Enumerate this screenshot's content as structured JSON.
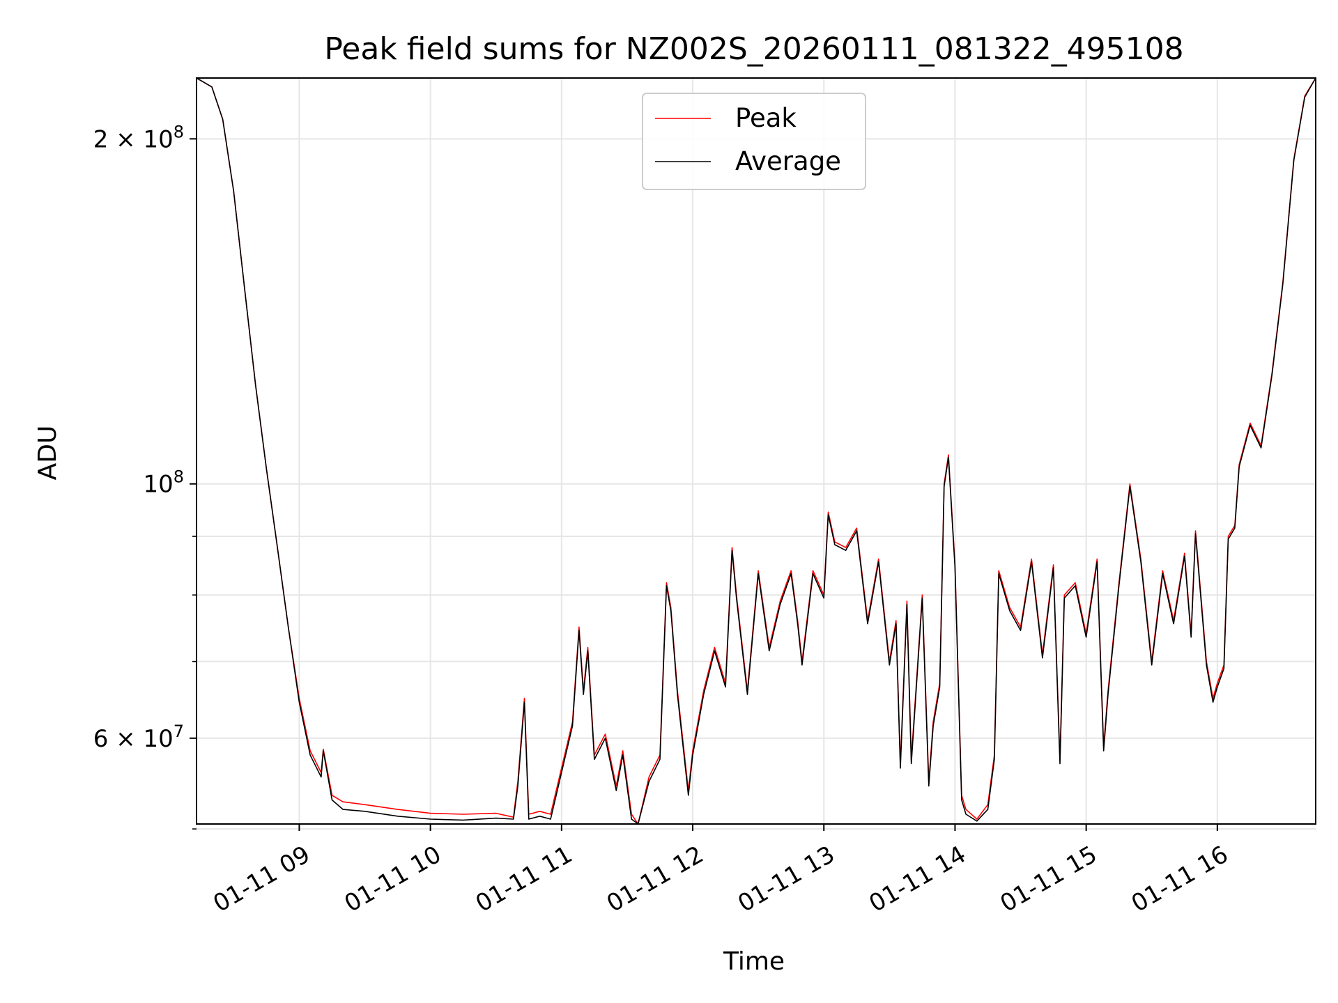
{
  "chart_data": {
    "type": "line",
    "title": "Peak field sums for NZ002S_20260111_081322_495108",
    "xlabel": "Time",
    "ylabel": "ADU",
    "yscale": "log",
    "grid": true,
    "legend_position": "upper center",
    "xlim": [
      "2026-01-11 08:13",
      "2026-01-11 16:45"
    ],
    "ylim": [
      50500000,
      226000000
    ],
    "x_ticks": [
      "01-11 09",
      "01-11 10",
      "01-11 11",
      "01-11 12",
      "01-11 13",
      "01-11 14",
      "01-11 15",
      "01-11 16"
    ],
    "y_ticks": [
      {
        "value": 200000000,
        "base": "2 × 10",
        "exp": "8"
      },
      {
        "value": 100000000,
        "base": "10",
        "exp": "8"
      },
      {
        "value": 60000000,
        "base": "6 × 10",
        "exp": "7"
      }
    ],
    "y_minor_ticks": [
      90000000,
      80000000,
      70000000,
      50000000
    ],
    "series": [
      {
        "name": "Peak",
        "color": "#ff0000",
        "x": [
          "2026-01-11 08:13",
          "2026-01-11 08:20",
          "2026-01-11 08:25",
          "2026-01-11 08:30",
          "2026-01-11 08:35",
          "2026-01-11 08:40",
          "2026-01-11 08:45",
          "2026-01-11 08:50",
          "2026-01-11 08:55",
          "2026-01-11 09:00",
          "2026-01-11 09:05",
          "2026-01-11 09:08",
          "2026-01-11 09:10",
          "2026-01-11 09:11",
          "2026-01-11 09:15",
          "2026-01-11 09:20",
          "2026-01-11 09:30",
          "2026-01-11 09:45",
          "2026-01-11 10:00",
          "2026-01-11 10:15",
          "2026-01-11 10:30",
          "2026-01-11 10:38",
          "2026-01-11 10:40",
          "2026-01-11 10:43",
          "2026-01-11 10:45",
          "2026-01-11 10:50",
          "2026-01-11 10:55",
          "2026-01-11 11:00",
          "2026-01-11 11:05",
          "2026-01-11 11:08",
          "2026-01-11 11:10",
          "2026-01-11 11:12",
          "2026-01-11 11:15",
          "2026-01-11 11:20",
          "2026-01-11 11:25",
          "2026-01-11 11:28",
          "2026-01-11 11:32",
          "2026-01-11 11:35",
          "2026-01-11 11:40",
          "2026-01-11 11:45",
          "2026-01-11 11:48",
          "2026-01-11 11:50",
          "2026-01-11 11:53",
          "2026-01-11 11:58",
          "2026-01-11 12:00",
          "2026-01-11 12:05",
          "2026-01-11 12:10",
          "2026-01-11 12:15",
          "2026-01-11 12:18",
          "2026-01-11 12:20",
          "2026-01-11 12:25",
          "2026-01-11 12:30",
          "2026-01-11 12:35",
          "2026-01-11 12:40",
          "2026-01-11 12:45",
          "2026-01-11 12:48",
          "2026-01-11 12:50",
          "2026-01-11 12:55",
          "2026-01-11 13:00",
          "2026-01-11 13:02",
          "2026-01-11 13:05",
          "2026-01-11 13:10",
          "2026-01-11 13:15",
          "2026-01-11 13:20",
          "2026-01-11 13:25",
          "2026-01-11 13:30",
          "2026-01-11 13:33",
          "2026-01-11 13:35",
          "2026-01-11 13:38",
          "2026-01-11 13:40",
          "2026-01-11 13:45",
          "2026-01-11 13:48",
          "2026-01-11 13:50",
          "2026-01-11 13:53",
          "2026-01-11 13:55",
          "2026-01-11 13:57",
          "2026-01-11 14:00",
          "2026-01-11 14:03",
          "2026-01-11 14:05",
          "2026-01-11 14:10",
          "2026-01-11 14:15",
          "2026-01-11 14:18",
          "2026-01-11 14:20",
          "2026-01-11 14:25",
          "2026-01-11 14:30",
          "2026-01-11 14:35",
          "2026-01-11 14:40",
          "2026-01-11 14:45",
          "2026-01-11 14:48",
          "2026-01-11 14:50",
          "2026-01-11 14:55",
          "2026-01-11 15:00",
          "2026-01-11 15:05",
          "2026-01-11 15:08",
          "2026-01-11 15:10",
          "2026-01-11 15:15",
          "2026-01-11 15:20",
          "2026-01-11 15:25",
          "2026-01-11 15:30",
          "2026-01-11 15:35",
          "2026-01-11 15:40",
          "2026-01-11 15:45",
          "2026-01-11 15:48",
          "2026-01-11 15:50",
          "2026-01-11 15:55",
          "2026-01-11 15:58",
          "2026-01-11 16:00",
          "2026-01-11 16:03",
          "2026-01-11 16:05",
          "2026-01-11 16:08",
          "2026-01-11 16:10",
          "2026-01-11 16:15",
          "2026-01-11 16:20",
          "2026-01-11 16:25",
          "2026-01-11 16:30",
          "2026-01-11 16:35",
          "2026-01-11 16:40",
          "2026-01-11 16:45"
        ],
        "y": [
          226000000,
          222000000,
          208000000,
          180000000,
          148000000,
          122000000,
          103000000,
          88000000,
          75000000,
          65000000,
          58500000,
          57000000,
          56000000,
          58700000,
          53500000,
          52800000,
          52500000,
          52000000,
          51600000,
          51500000,
          51600000,
          51200000,
          55000000,
          65000000,
          51500000,
          51800000,
          51500000,
          56500000,
          62000000,
          75000000,
          66000000,
          72000000,
          58000000,
          60500000,
          54500000,
          58500000,
          51500000,
          50500000,
          55500000,
          58000000,
          82000000,
          78000000,
          66000000,
          54000000,
          58500000,
          66000000,
          72000000,
          67000000,
          88000000,
          80000000,
          66000000,
          84000000,
          72000000,
          79000000,
          84000000,
          76000000,
          70000000,
          84000000,
          80000000,
          94500000,
          89000000,
          88000000,
          91500000,
          76000000,
          86000000,
          70000000,
          76000000,
          57000000,
          79000000,
          57500000,
          80000000,
          55000000,
          62000000,
          67000000,
          100000000,
          106000000,
          85000000,
          53500000,
          52000000,
          51000000,
          52500000,
          58000000,
          84000000,
          78000000,
          75000000,
          86000000,
          71000000,
          85000000,
          57500000,
          80000000,
          82000000,
          74000000,
          86000000,
          59000000,
          66000000,
          82000000,
          100000000,
          86000000,
          70000000,
          84000000,
          76000000,
          87000000,
          74000000,
          91000000,
          70000000,
          65000000,
          67000000,
          69500000,
          90000000,
          92000000,
          104000000,
          113000000,
          108000000,
          125000000,
          150000000,
          192000000,
          218000000,
          226000000
        ]
      },
      {
        "name": "Average",
        "color": "#000000",
        "x": [
          "2026-01-11 08:13",
          "2026-01-11 08:20",
          "2026-01-11 08:25",
          "2026-01-11 08:30",
          "2026-01-11 08:35",
          "2026-01-11 08:40",
          "2026-01-11 08:45",
          "2026-01-11 08:50",
          "2026-01-11 08:55",
          "2026-01-11 09:00",
          "2026-01-11 09:05",
          "2026-01-11 09:08",
          "2026-01-11 09:10",
          "2026-01-11 09:11",
          "2026-01-11 09:15",
          "2026-01-11 09:20",
          "2026-01-11 09:30",
          "2026-01-11 09:45",
          "2026-01-11 10:00",
          "2026-01-11 10:15",
          "2026-01-11 10:30",
          "2026-01-11 10:38",
          "2026-01-11 10:40",
          "2026-01-11 10:43",
          "2026-01-11 10:45",
          "2026-01-11 10:50",
          "2026-01-11 10:55",
          "2026-01-11 11:00",
          "2026-01-11 11:05",
          "2026-01-11 11:08",
          "2026-01-11 11:10",
          "2026-01-11 11:12",
          "2026-01-11 11:15",
          "2026-01-11 11:20",
          "2026-01-11 11:25",
          "2026-01-11 11:28",
          "2026-01-11 11:32",
          "2026-01-11 11:35",
          "2026-01-11 11:40",
          "2026-01-11 11:45",
          "2026-01-11 11:48",
          "2026-01-11 11:50",
          "2026-01-11 11:53",
          "2026-01-11 11:58",
          "2026-01-11 12:00",
          "2026-01-11 12:05",
          "2026-01-11 12:10",
          "2026-01-11 12:15",
          "2026-01-11 12:18",
          "2026-01-11 12:20",
          "2026-01-11 12:25",
          "2026-01-11 12:30",
          "2026-01-11 12:35",
          "2026-01-11 12:40",
          "2026-01-11 12:45",
          "2026-01-11 12:48",
          "2026-01-11 12:50",
          "2026-01-11 12:55",
          "2026-01-11 13:00",
          "2026-01-11 13:02",
          "2026-01-11 13:05",
          "2026-01-11 13:10",
          "2026-01-11 13:15",
          "2026-01-11 13:20",
          "2026-01-11 13:25",
          "2026-01-11 13:30",
          "2026-01-11 13:33",
          "2026-01-11 13:35",
          "2026-01-11 13:38",
          "2026-01-11 13:40",
          "2026-01-11 13:45",
          "2026-01-11 13:48",
          "2026-01-11 13:50",
          "2026-01-11 13:53",
          "2026-01-11 13:55",
          "2026-01-11 13:57",
          "2026-01-11 14:00",
          "2026-01-11 14:03",
          "2026-01-11 14:05",
          "2026-01-11 14:10",
          "2026-01-11 14:15",
          "2026-01-11 14:18",
          "2026-01-11 14:20",
          "2026-01-11 14:25",
          "2026-01-11 14:30",
          "2026-01-11 14:35",
          "2026-01-11 14:40",
          "2026-01-11 14:45",
          "2026-01-11 14:48",
          "2026-01-11 14:50",
          "2026-01-11 14:55",
          "2026-01-11 15:00",
          "2026-01-11 15:05",
          "2026-01-11 15:08",
          "2026-01-11 15:10",
          "2026-01-11 15:15",
          "2026-01-11 15:20",
          "2026-01-11 15:25",
          "2026-01-11 15:30",
          "2026-01-11 15:35",
          "2026-01-11 15:40",
          "2026-01-11 15:45",
          "2026-01-11 15:48",
          "2026-01-11 15:50",
          "2026-01-11 15:55",
          "2026-01-11 15:58",
          "2026-01-11 16:00",
          "2026-01-11 16:03",
          "2026-01-11 16:05",
          "2026-01-11 16:08",
          "2026-01-11 16:10",
          "2026-01-11 16:15",
          "2026-01-11 16:20",
          "2026-01-11 16:25",
          "2026-01-11 16:30",
          "2026-01-11 16:35",
          "2026-01-11 16:40",
          "2026-01-11 16:45"
        ],
        "y": [
          226000000,
          222000000,
          208000000,
          180000000,
          148000000,
          122000000,
          103000000,
          88000000,
          75000000,
          64500000,
          58000000,
          56500000,
          55500000,
          58500000,
          53000000,
          52000000,
          51800000,
          51300000,
          51000000,
          50900000,
          51100000,
          51000000,
          54500000,
          64500000,
          51000000,
          51300000,
          51000000,
          56000000,
          61500000,
          74500000,
          65500000,
          71500000,
          57500000,
          60000000,
          54000000,
          58000000,
          51000000,
          50500000,
          55000000,
          57500000,
          81500000,
          77500000,
          65500000,
          53500000,
          58000000,
          65500000,
          71500000,
          66500000,
          87500000,
          79500000,
          65500000,
          83500000,
          71500000,
          78500000,
          83500000,
          75500000,
          69500000,
          83500000,
          79500000,
          94000000,
          88500000,
          87500000,
          91000000,
          75500000,
          85500000,
          69500000,
          75500000,
          56500000,
          78500000,
          57000000,
          79500000,
          54500000,
          61500000,
          66500000,
          99500000,
          105500000,
          84500000,
          53000000,
          51500000,
          50800000,
          52000000,
          57500000,
          83500000,
          77500000,
          74500000,
          85500000,
          70500000,
          84500000,
          57000000,
          79500000,
          81500000,
          73500000,
          85500000,
          58500000,
          65500000,
          81500000,
          99500000,
          85500000,
          69500000,
          83500000,
          75500000,
          86500000,
          73500000,
          90500000,
          69500000,
          64500000,
          66500000,
          69000000,
          89500000,
          91500000,
          103500000,
          112500000,
          107500000,
          124500000,
          149500000,
          191500000,
          217500000,
          226000000
        ]
      }
    ]
  }
}
